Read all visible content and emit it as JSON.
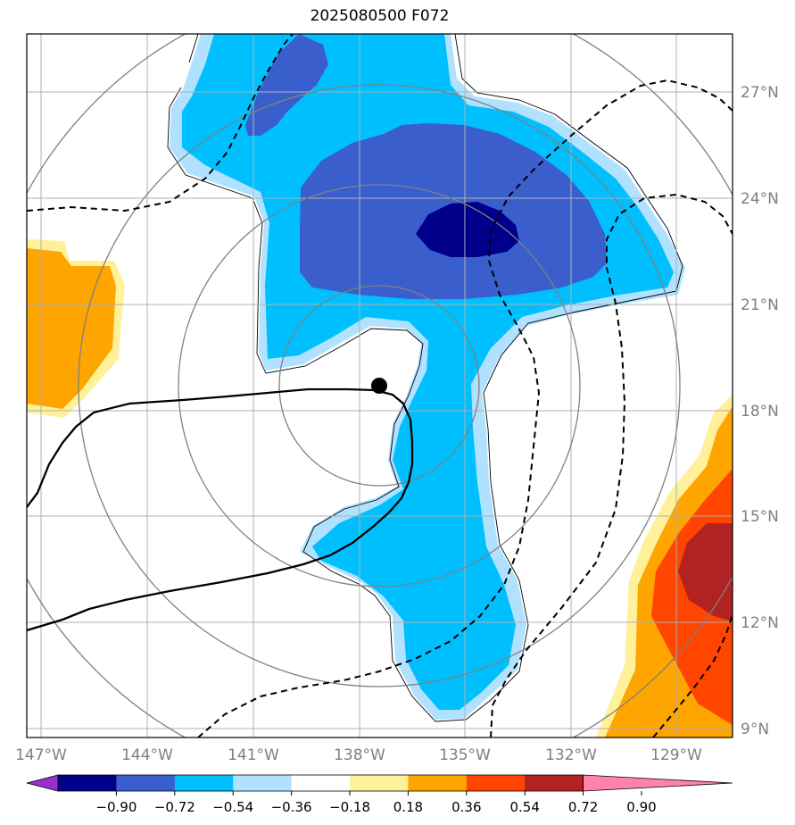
{
  "title": "2025080500 F072",
  "map": {
    "type": "filled-contour-map",
    "longitude_ticks": [
      "147°W",
      "144°W",
      "141°W",
      "138°W",
      "135°W",
      "132°W",
      "129°W"
    ],
    "latitude_ticks": [
      "27°N",
      "24°N",
      "21°N",
      "18°N",
      "15°N",
      "12°N",
      "9°N"
    ],
    "extent": {
      "lon": [
        -147.4,
        -127.3
      ],
      "lat": [
        8.7,
        28.7
      ]
    },
    "grid": true,
    "range_rings": 4,
    "storm_center": {
      "lon": -137.5,
      "lat": 18.7
    },
    "overlays": [
      "coastline-style contour (thin black)",
      "track line (solid black)",
      "dashed contours"
    ]
  },
  "colorbar": {
    "tick_labels": [
      "−0.90",
      "−0.72",
      "−0.54",
      "−0.36",
      "−0.18",
      "0.18",
      "0.36",
      "0.54",
      "0.72",
      "0.90"
    ],
    "colors": [
      "#9932cc",
      "#00008b",
      "#3a5fcd",
      "#00bfff",
      "#b0e2ff",
      "#ffffff",
      "#fff09a",
      "#ffa500",
      "#ff4500",
      "#b22222",
      "#ff82ab"
    ],
    "extend": "both"
  }
}
